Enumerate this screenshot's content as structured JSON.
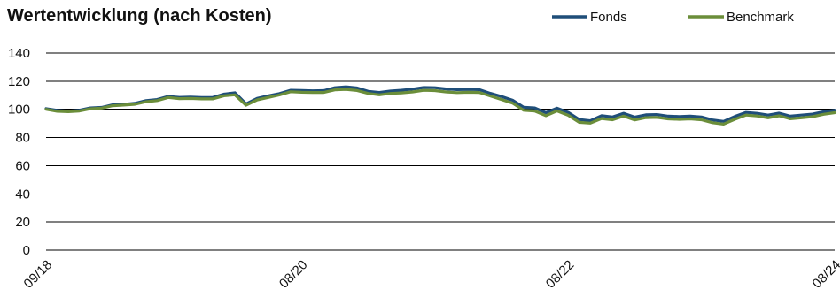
{
  "chart_data": {
    "type": "line",
    "title": "Wertentwicklung (nach Kosten)",
    "xlabel": "",
    "ylabel": "",
    "ylim": [
      0,
      140
    ],
    "yticks": [
      0,
      20,
      40,
      60,
      80,
      100,
      120,
      140
    ],
    "grid": true,
    "legend_position": "top-right",
    "x_tick_labels": [
      {
        "label": "09/18",
        "index": 0
      },
      {
        "label": "08/20",
        "index": 23
      },
      {
        "label": "08/22",
        "index": 47
      },
      {
        "label": "08/24",
        "index": 71
      }
    ],
    "series": [
      {
        "name": "Fonds",
        "color": "#1f4e79",
        "values": [
          100.5,
          99.3,
          98.7,
          99.4,
          101.0,
          101.4,
          103.2,
          103.6,
          104.3,
          106.2,
          107.0,
          109.2,
          108.5,
          108.7,
          108.4,
          108.4,
          110.8,
          111.8,
          103.9,
          107.8,
          109.6,
          111.2,
          113.6,
          113.4,
          113.2,
          113.3,
          115.4,
          116.0,
          115.2,
          112.8,
          112.0,
          113.0,
          113.6,
          114.4,
          115.5,
          115.4,
          114.5,
          114.0,
          114.2,
          114.0,
          111.4,
          109.1,
          106.5,
          101.5,
          101.0,
          97.6,
          100.8,
          97.9,
          92.8,
          91.9,
          95.5,
          94.6,
          97.2,
          94.5,
          96.1,
          96.3,
          95.2,
          94.9,
          95.2,
          94.6,
          92.5,
          91.5,
          94.9,
          97.8,
          97.2,
          95.9,
          97.3,
          95.2,
          95.9,
          96.6,
          98.3,
          99.4
        ]
      },
      {
        "name": "Benchmark",
        "color": "#6b8e3a",
        "values": [
          100.0,
          98.6,
          98.3,
          98.8,
          100.4,
          100.9,
          102.6,
          103.0,
          103.6,
          105.4,
          106.2,
          108.4,
          107.6,
          107.7,
          107.4,
          107.4,
          109.6,
          110.3,
          102.9,
          106.7,
          108.4,
          110.2,
          112.5,
          112.1,
          112.0,
          112.0,
          113.8,
          114.2,
          113.4,
          111.3,
          110.3,
          111.3,
          111.7,
          112.4,
          113.5,
          113.3,
          112.4,
          111.9,
          112.1,
          112.0,
          109.5,
          107.0,
          104.4,
          99.3,
          98.8,
          95.5,
          98.9,
          95.8,
          90.8,
          90.2,
          93.5,
          92.6,
          95.2,
          92.5,
          94.1,
          94.3,
          93.2,
          92.9,
          93.2,
          92.6,
          90.5,
          89.5,
          92.9,
          95.9,
          95.3,
          94.0,
          95.4,
          93.3,
          94.0,
          94.8,
          96.5,
          97.6
        ]
      }
    ]
  }
}
